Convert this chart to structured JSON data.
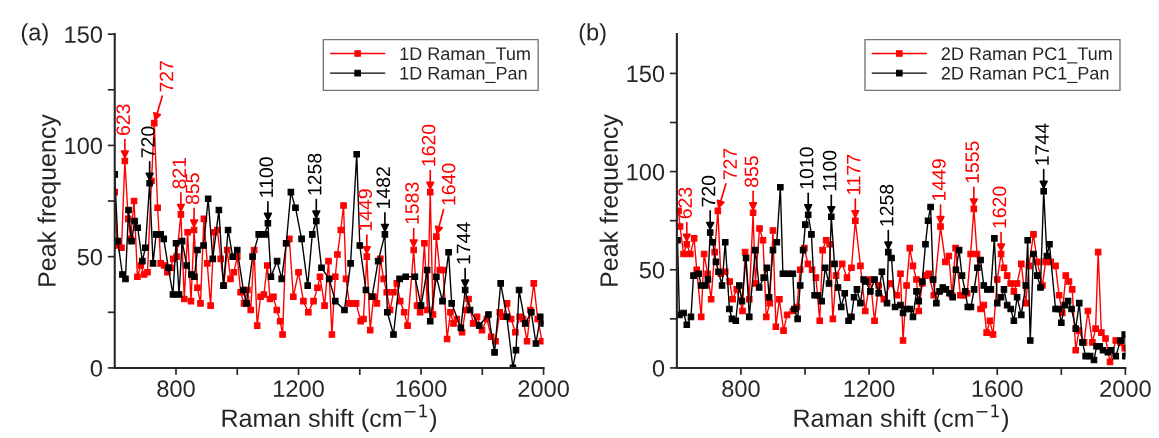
{
  "chart_data": [
    {
      "type": "line",
      "xlabel": "Raman shift (cm$^{−1}$)",
      "ylabel": "Peak frequency",
      "xlim": [
        600,
        2000
      ],
      "ylim": [
        0,
        150
      ],
      "xticks": [
        {
          "value": 800,
          "label": "800"
        },
        {
          "value": 1000,
          "label": null
        },
        {
          "value": 1200,
          "label": "1200"
        },
        {
          "value": 1400,
          "label": null
        },
        {
          "value": 1600,
          "label": "1600"
        },
        {
          "value": 1800,
          "label": null
        },
        {
          "value": 2000,
          "label": "2000"
        }
      ],
      "yticks": [
        0,
        {
          "value": 25,
          "label": null
        },
        50,
        {
          "value": 75,
          "label": null
        },
        100,
        {
          "value": 125,
          "label": null
        },
        150
      ],
      "marker": "square",
      "legend": "top right",
      "grid": false,
      "series": [
        {
          "name": "1D Raman_Tum",
          "color": "#ff0000",
          "x": [
            600,
            608,
            622,
            633,
            644,
            652,
            663,
            674,
            685,
            696,
            707,
            720,
            729,
            740,
            750,
            761,
            772,
            782,
            791,
            802,
            816,
            827,
            838,
            849,
            859,
            870,
            880,
            891,
            902,
            913,
            924,
            935,
            946,
            956,
            967,
            978,
            989,
            1000,
            1011,
            1022,
            1033,
            1044,
            1055,
            1065,
            1076,
            1087,
            1098,
            1107,
            1118,
            1129,
            1140,
            1148,
            1159,
            1170,
            1183,
            1200,
            1216,
            1232,
            1249,
            1262,
            1270,
            1285,
            1298,
            1309,
            1320,
            1327,
            1338,
            1347,
            1355,
            1366,
            1377,
            1388,
            1403,
            1412,
            1423,
            1434,
            1445,
            1456,
            1467,
            1478,
            1488,
            1499,
            1510,
            1521,
            1532,
            1545,
            1556,
            1576,
            1587,
            1597,
            1611,
            1621,
            1630,
            1639,
            1650,
            1661,
            1672,
            1685,
            1696,
            1706,
            1717,
            1734,
            1745,
            1755,
            1770,
            1783,
            1799,
            1815,
            1829,
            1843,
            1857,
            1868,
            1881,
            1894,
            1908,
            1922,
            1933,
            1946,
            1957,
            1968,
            1981,
            1995
          ],
          "values": [
            79,
            55,
            54,
            93,
            67,
            58,
            75,
            41,
            46,
            42,
            43,
            84,
            110,
            72,
            47,
            46,
            43,
            45,
            49,
            50,
            69,
            31,
            61,
            30,
            62,
            36,
            29,
            67,
            47,
            28,
            61,
            62,
            49,
            37,
            53,
            40,
            43,
            50,
            34,
            29,
            35,
            26,
            53,
            19,
            32,
            33,
            46,
            31,
            32,
            26,
            21,
            15,
            56,
            58,
            32,
            43,
            30,
            25,
            30,
            36,
            41,
            28,
            48,
            15,
            41,
            51,
            62,
            73,
            40,
            29,
            29,
            29,
            21,
            22,
            50,
            17,
            32,
            29,
            49,
            40,
            34,
            26,
            34,
            38,
            30,
            25,
            19,
            53,
            28,
            25,
            56,
            26,
            79,
            24,
            59,
            44,
            44,
            13,
            25,
            20,
            22,
            16,
            26,
            31,
            20,
            23,
            17,
            22,
            14,
            12,
            25,
            23,
            29,
            22,
            16,
            23,
            22,
            12,
            26,
            38,
            22,
            12
          ]
        },
        {
          "name": "1D Raman_Pan",
          "color": "#000000",
          "x": [
            600,
            610,
            625,
            635,
            645,
            655,
            665,
            675,
            690,
            700,
            714,
            725,
            735,
            750,
            760,
            775,
            790,
            800,
            810,
            820,
            835,
            850,
            860,
            870,
            890,
            905,
            920,
            940,
            955,
            970,
            985,
            1000,
            1020,
            1030,
            1050,
            1070,
            1090,
            1100,
            1110,
            1130,
            1145,
            1160,
            1175,
            1190,
            1210,
            1230,
            1245,
            1258,
            1275,
            1300,
            1320,
            1350,
            1370,
            1390,
            1400,
            1420,
            1440,
            1460,
            1482,
            1490,
            1510,
            1530,
            1550,
            1580,
            1600,
            1620,
            1630,
            1650,
            1670,
            1690,
            1700,
            1730,
            1744,
            1760,
            1790,
            1820,
            1840,
            1860,
            1880,
            1900,
            1910,
            1920,
            1940,
            1960,
            1975,
            1990,
            2000
          ],
          "values": [
            87,
            57,
            42,
            40,
            71,
            57,
            66,
            63,
            48,
            54,
            83,
            47,
            60,
            60,
            58,
            45,
            33,
            56,
            33,
            57,
            46,
            42,
            41,
            53,
            55,
            76,
            49,
            71,
            37,
            62,
            50,
            53,
            35,
            29,
            50,
            60,
            60,
            65,
            41,
            48,
            40,
            56,
            79,
            72,
            58,
            37,
            60,
            66,
            45,
            40,
            30,
            26,
            47,
            96,
            55,
            35,
            32,
            48,
            60,
            25,
            15,
            40,
            41,
            41,
            28,
            44,
            21,
            41,
            30,
            52,
            29,
            18,
            35,
            26,
            19,
            24,
            7,
            38,
            23,
            0,
            8,
            35,
            20,
            25,
            11,
            23,
            20
          ]
        }
      ],
      "annotations": [
        "(a)",
        {
          "text": "623",
          "x": 633,
          "y": 93
        },
        {
          "text": "720",
          "x": 714,
          "y": 83
        },
        {
          "text": "727",
          "x": 729,
          "y": 110
        },
        {
          "text": "821",
          "x": 816,
          "y": 69
        },
        {
          "text": "855",
          "x": 859,
          "y": 62
        },
        {
          "text": "1100",
          "x": 1100,
          "y": 65
        },
        {
          "text": "1258",
          "x": 1258,
          "y": 66
        },
        {
          "text": "1449",
          "x": 1423,
          "y": 50
        },
        {
          "text": "1482",
          "x": 1482,
          "y": 60
        },
        {
          "text": "1583",
          "x": 1576,
          "y": 53
        },
        {
          "text": "1620",
          "x": 1630,
          "y": 79
        },
        {
          "text": "1640",
          "x": 1650,
          "y": 59
        },
        {
          "text": "1744",
          "x": 1744,
          "y": 35
        }
      ]
    },
    {
      "type": "line",
      "xlabel": "Raman shift (cm$^{−1}$)",
      "ylabel": "Peak frequency",
      "xlim": [
        600,
        2000
      ],
      "ylim": [
        0,
        170
      ],
      "xticks": [
        {
          "value": 800,
          "label": "800"
        },
        {
          "value": 1000,
          "label": null
        },
        {
          "value": 1200,
          "label": "1200"
        },
        {
          "value": 1400,
          "label": null
        },
        {
          "value": 1600,
          "label": "1600"
        },
        {
          "value": 1800,
          "label": null
        },
        {
          "value": 2000,
          "label": "2000"
        }
      ],
      "yticks": [
        0,
        {
          "value": 25,
          "label": null
        },
        50,
        {
          "value": 75,
          "label": null
        },
        100,
        {
          "value": 125,
          "label": null
        },
        150
      ],
      "marker": "square",
      "legend": "top right",
      "grid": false,
      "series": [
        {
          "name": "2D Raman PC1_Tum",
          "color": "#ff0000",
          "x": [
            605,
            610,
            621,
            631,
            642,
            654,
            662,
            676,
            685,
            696,
            707,
            718,
            728,
            737,
            751,
            765,
            774,
            787,
            805,
            813,
            826,
            838,
            845,
            858,
            869,
            879,
            890,
            900,
            909,
            920,
            933,
            944,
            962,
            975,
            985,
            998,
            1009,
            1022,
            1034,
            1046,
            1055,
            1066,
            1077,
            1087,
            1097,
            1116,
            1131,
            1145,
            1157,
            1173,
            1188,
            1204,
            1217,
            1230,
            1246,
            1267,
            1287,
            1298,
            1306,
            1317,
            1327,
            1337,
            1348,
            1355,
            1366,
            1376,
            1386,
            1402,
            1423,
            1438,
            1449,
            1459,
            1470,
            1485,
            1496,
            1506,
            1517,
            1527,
            1537,
            1548,
            1558,
            1567,
            1577,
            1587,
            1600,
            1612,
            1621,
            1631,
            1642,
            1652,
            1662,
            1675,
            1689,
            1699,
            1713,
            1725,
            1741,
            1751,
            1767,
            1782,
            1793,
            1803,
            1814,
            1824,
            1834,
            1845,
            1855,
            1871,
            1883,
            1897,
            1907,
            1915,
            1925,
            1938,
            1952,
            1970,
            1985,
            1998
          ],
          "values": [
            80,
            72,
            58,
            63,
            58,
            66,
            50,
            26,
            58,
            48,
            35,
            59,
            80,
            48,
            49,
            44,
            35,
            40,
            29,
            59,
            35,
            79,
            43,
            71,
            65,
            26,
            33,
            70,
            21,
            35,
            19,
            27,
            29,
            31,
            50,
            61,
            53,
            50,
            46,
            24,
            60,
            65,
            63,
            25,
            47,
            53,
            46,
            51,
            75,
            52,
            29,
            45,
            24,
            42,
            35,
            43,
            37,
            48,
            14,
            42,
            61,
            52,
            45,
            29,
            43,
            47,
            48,
            37,
            72,
            54,
            57,
            37,
            61,
            37,
            37,
            38,
            58,
            81,
            58,
            30,
            32,
            18,
            24,
            17,
            45,
            58,
            51,
            47,
            43,
            39,
            43,
            53,
            33,
            52,
            68,
            54,
            42,
            54,
            54,
            52,
            37,
            28,
            47,
            44,
            40,
            9,
            19,
            13,
            29,
            13,
            20,
            59,
            18,
            15,
            3,
            14,
            13,
            10
          ]
        },
        {
          "name": "2D Raman PC1_Pan",
          "color": "#000000",
          "x": [
            602,
            608,
            621,
            631,
            644,
            652,
            668,
            676,
            689,
            697,
            704,
            712,
            722,
            730,
            741,
            751,
            764,
            772,
            784,
            795,
            803,
            816,
            826,
            845,
            857,
            871,
            881,
            888,
            900,
            912,
            923,
            931,
            946,
            962,
            967,
            977,
            985,
            994,
            1001,
            1010,
            1020,
            1030,
            1040,
            1052,
            1063,
            1075,
            1082,
            1092,
            1103,
            1113,
            1124,
            1136,
            1145,
            1153,
            1162,
            1173,
            1183,
            1190,
            1204,
            1217,
            1230,
            1240,
            1256,
            1260,
            1270,
            1281,
            1298,
            1306,
            1317,
            1327,
            1337,
            1348,
            1355,
            1366,
            1376,
            1384,
            1392,
            1400,
            1410,
            1420,
            1430,
            1440,
            1451,
            1461,
            1471,
            1481,
            1490,
            1500,
            1508,
            1518,
            1528,
            1538,
            1548,
            1558,
            1569,
            1580,
            1591,
            1600,
            1612,
            1621,
            1631,
            1642,
            1652,
            1662,
            1675,
            1689,
            1695,
            1703,
            1713,
            1725,
            1735,
            1745,
            1755,
            1763,
            1782,
            1792,
            1800,
            1811,
            1821,
            1832,
            1845,
            1856,
            1866,
            1876,
            1890,
            1902,
            1910,
            1920,
            1930,
            1945,
            1956,
            1970,
            1985,
            1998,
            2000
          ],
          "values": [
            65,
            27,
            28,
            22,
            26,
            47,
            48,
            42,
            42,
            45,
            69,
            64,
            54,
            49,
            42,
            64,
            30,
            25,
            24,
            42,
            34,
            56,
            26,
            60,
            41,
            46,
            51,
            36,
            60,
            64,
            92,
            48,
            48,
            48,
            30,
            25,
            42,
            60,
            73,
            78,
            68,
            37,
            37,
            34,
            51,
            43,
            77,
            53,
            41,
            31,
            38,
            24,
            26,
            36,
            40,
            33,
            45,
            44,
            39,
            45,
            38,
            49,
            33,
            59,
            56,
            31,
            32,
            28,
            30,
            30,
            26,
            39,
            34,
            44,
            63,
            75,
            82,
            45,
            33,
            39,
            41,
            40,
            38,
            36,
            50,
            60,
            47,
            39,
            31,
            31,
            40,
            51,
            55,
            42,
            40,
            40,
            66,
            33,
            36,
            40,
            32,
            30,
            24,
            36,
            27,
            42,
            65,
            14,
            58,
            47,
            41,
            90,
            57,
            63,
            30,
            30,
            23,
            32,
            34,
            30,
            20,
            33,
            13,
            6,
            6,
            4,
            11,
            11,
            9,
            8,
            9,
            6,
            14,
            17,
            6
          ]
        }
      ],
      "annotations": [
        "(b)",
        {
          "text": "623",
          "x": 631,
          "y": 63
        },
        {
          "text": "720",
          "x": 704,
          "y": 69
        },
        {
          "text": "727",
          "x": 728,
          "y": 80
        },
        {
          "text": "855",
          "x": 838,
          "y": 79
        },
        {
          "text": "1010",
          "x": 1010,
          "y": 78
        },
        {
          "text": "1100",
          "x": 1082,
          "y": 77
        },
        {
          "text": "1177",
          "x": 1157,
          "y": 75
        },
        {
          "text": "1258",
          "x": 1260,
          "y": 59
        },
        {
          "text": "1449",
          "x": 1423,
          "y": 72
        },
        {
          "text": "1555",
          "x": 1527,
          "y": 81
        },
        {
          "text": "1620",
          "x": 1612,
          "y": 58
        },
        {
          "text": "1744",
          "x": 1745,
          "y": 90
        }
      ]
    }
  ]
}
